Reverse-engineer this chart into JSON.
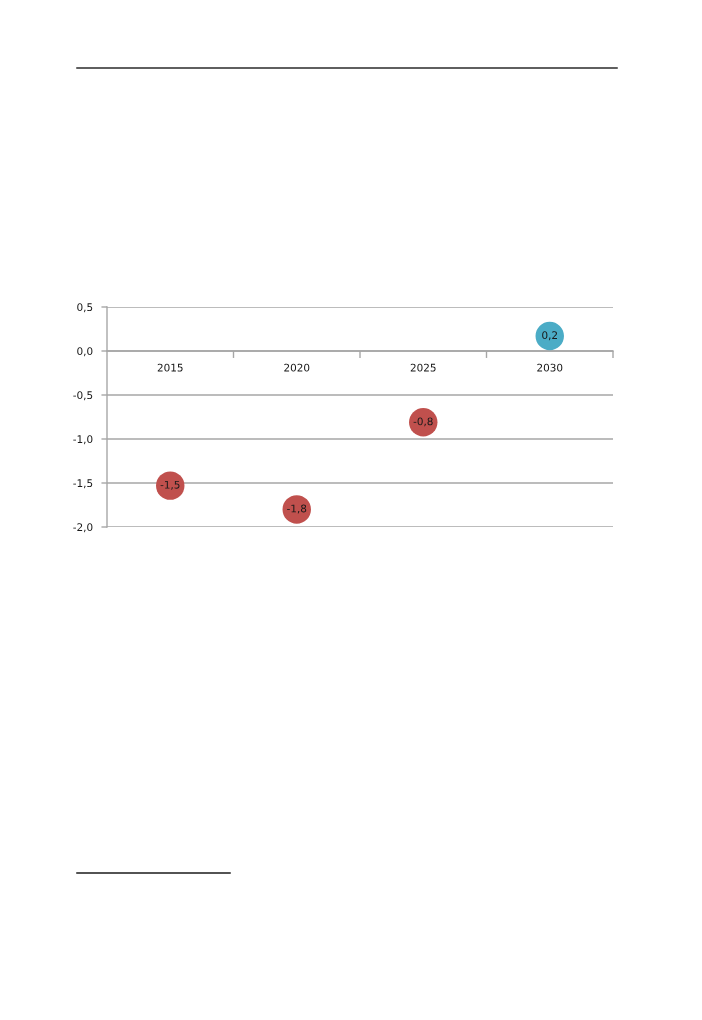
{
  "chart_data": {
    "type": "scatter",
    "categories": [
      "2015",
      "2020",
      "2025",
      "2030"
    ],
    "values": [
      -1.53,
      -1.8,
      -0.81,
      0.17
    ],
    "colors": [
      "#c0504d",
      "#c0504d",
      "#c0504d",
      "#4bacc6"
    ],
    "value_labels": [
      "-1,5",
      "-1,8",
      "-0,8",
      "0,2"
    ],
    "ylim": [
      -2.0,
      0.5
    ],
    "yticks": [
      {
        "value": 0.5,
        "label": "0,5"
      },
      {
        "value": 0.0,
        "label": "0,0"
      },
      {
        "value": -0.5,
        "label": "-0,5"
      },
      {
        "value": -1.0,
        "label": "-1,0"
      },
      {
        "value": -1.5,
        "label": "-1,5"
      },
      {
        "value": -2.0,
        "label": "-2,0"
      }
    ],
    "grid": "y",
    "marker": "circle"
  }
}
